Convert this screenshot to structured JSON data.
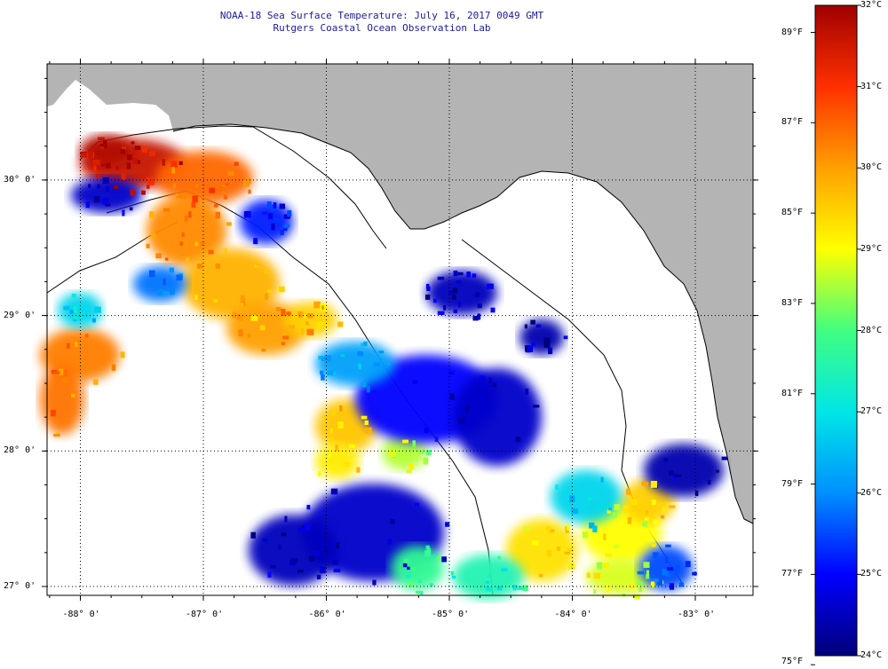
{
  "header": {
    "title": "NOAA-18 Sea Surface Temperature:  July 16, 2017 0049 GMT",
    "subtitle": "Rutgers Coastal Ocean Observation Lab"
  },
  "map": {
    "lat_ticks": [
      {
        "value": 30,
        "label": "30° 0'"
      },
      {
        "value": 29,
        "label": "29° 0'"
      },
      {
        "value": 28,
        "label": "28° 0'"
      },
      {
        "value": 27,
        "label": "27° 0'"
      }
    ],
    "lon_ticks": [
      {
        "value": -88,
        "label": "-88° 0'"
      },
      {
        "value": -87,
        "label": "-87° 0'"
      },
      {
        "value": -86,
        "label": "-86° 0'"
      },
      {
        "value": -85,
        "label": "-85° 0'"
      },
      {
        "value": -84,
        "label": "-84° 0'"
      },
      {
        "value": -83,
        "label": "-83° 0'"
      }
    ],
    "colors": {
      "land": "#b4b4b4",
      "cloud": "#ffffff",
      "coast": "#000000",
      "grid": "#000000"
    }
  },
  "colorbar": {
    "celsius": [
      {
        "value": 32,
        "label": "32°C"
      },
      {
        "value": 31,
        "label": "31°C"
      },
      {
        "value": 30,
        "label": "30°C"
      },
      {
        "value": 29,
        "label": "29°C"
      },
      {
        "value": 28,
        "label": "28°C"
      },
      {
        "value": 27,
        "label": "27°C"
      },
      {
        "value": 26,
        "label": "26°C"
      },
      {
        "value": 25,
        "label": "25°C"
      },
      {
        "value": 24,
        "label": "24°C"
      }
    ],
    "fahrenheit": [
      {
        "value": 89,
        "label": "89°F"
      },
      {
        "value": 87,
        "label": "87°F"
      },
      {
        "value": 85,
        "label": "85°F"
      },
      {
        "value": 83,
        "label": "83°F"
      },
      {
        "value": 81,
        "label": "81°F"
      },
      {
        "value": 79,
        "label": "79°F"
      },
      {
        "value": 77,
        "label": "77°F"
      },
      {
        "value": 75,
        "label": "75°F"
      }
    ],
    "stops": [
      "#00007a",
      "#0000ff",
      "#0090ff",
      "#00e6e6",
      "#40ff80",
      "#ffff00",
      "#ffa000",
      "#ff3000",
      "#a00000"
    ]
  }
}
